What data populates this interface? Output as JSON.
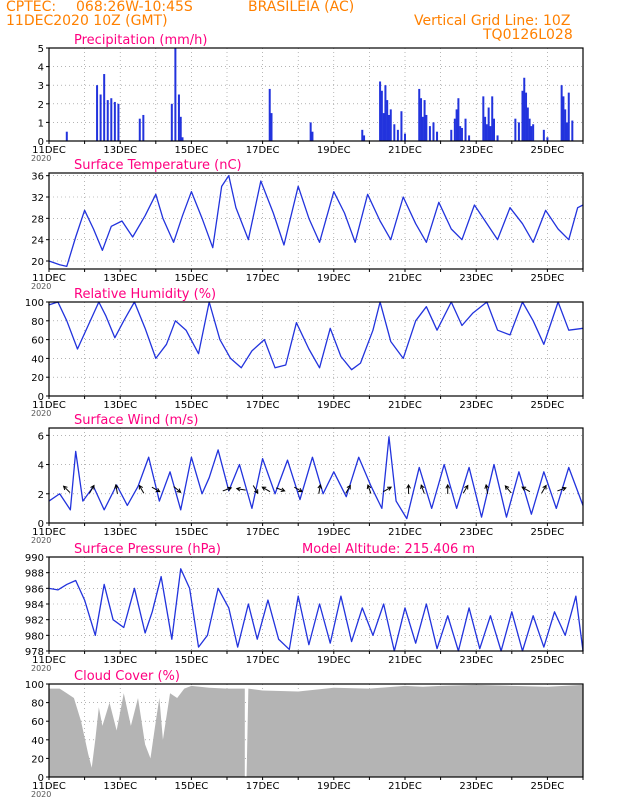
{
  "header": {
    "line1_left": "CPTEC:",
    "coords": "068:26W-10:45S",
    "station": "BRASILEIA (AC)",
    "date": "11DEC2020 10Z (GMT)",
    "grid_note": "Vertical Grid Line: 10Z",
    "model_code": "TQ0126L028",
    "color": "#ff8000"
  },
  "colors": {
    "series": "#2233dd",
    "title": "#ff0080",
    "cloud": "#b4b4b4",
    "grid": "#888888",
    "axis": "#000000"
  },
  "x_tick_labels": [
    "11DEC",
    "13DEC",
    "15DEC",
    "17DEC",
    "19DEC",
    "21DEC",
    "23DEC",
    "25DEC"
  ],
  "x_year_label": "2020",
  "chart_data": [
    {
      "id": "precip",
      "type": "bar",
      "title": "Precipitation (mm/h)",
      "ylim": [
        0,
        5
      ],
      "yticks": [
        0,
        1,
        2,
        3,
        4,
        5
      ],
      "x_unit": "days since 11DEC 10Z",
      "x": [
        0.5,
        1.35,
        1.45,
        1.55,
        1.65,
        1.75,
        1.85,
        1.95,
        2.55,
        2.65,
        3.45,
        3.55,
        3.65,
        3.7,
        3.75,
        6.2,
        6.25,
        7.35,
        7.4,
        8.8,
        8.85,
        9.3,
        9.35,
        9.4,
        9.45,
        9.5,
        9.55,
        9.6,
        9.7,
        9.8,
        9.9,
        10.0,
        10.4,
        10.45,
        10.5,
        10.55,
        10.6,
        10.7,
        10.8,
        10.9,
        11.3,
        11.4,
        11.45,
        11.5,
        11.55,
        11.6,
        11.7,
        11.8,
        12.2,
        12.25,
        12.3,
        12.35,
        12.4,
        12.45,
        12.5,
        12.6,
        13.1,
        13.2,
        13.3,
        13.35,
        13.4,
        13.45,
        13.5,
        13.55,
        13.6,
        13.9,
        14.0,
        14.4,
        14.45,
        14.5,
        14.55,
        14.6,
        14.7
      ],
      "values": [
        0.5,
        3.0,
        2.5,
        3.6,
        2.2,
        2.3,
        2.1,
        2.0,
        1.2,
        1.4,
        2.0,
        5.0,
        2.5,
        1.3,
        0.2,
        2.8,
        1.5,
        1.0,
        0.5,
        0.6,
        0.3,
        3.2,
        2.7,
        1.5,
        3.0,
        2.2,
        1.4,
        1.7,
        0.9,
        0.6,
        1.6,
        0.4,
        2.8,
        2.3,
        1.3,
        2.2,
        1.4,
        0.8,
        1.0,
        0.5,
        0.6,
        1.2,
        1.7,
        2.3,
        0.8,
        0.7,
        1.2,
        0.3,
        2.4,
        1.3,
        0.9,
        1.8,
        0.8,
        2.4,
        1.2,
        0.3,
        1.2,
        1.0,
        2.7,
        3.4,
        2.6,
        1.8,
        1.2,
        0.8,
        0.9,
        0.6,
        0.2,
        3.0,
        2.4,
        1.7,
        1.0,
        2.6,
        1.1
      ]
    },
    {
      "id": "temp",
      "type": "line",
      "title": "Surface Temperature (nC)",
      "ylim": [
        18.5,
        36.5
      ],
      "yticks": [
        20,
        24,
        28,
        32,
        36
      ],
      "x_unit": "days since 11DEC 10Z",
      "x": [
        0,
        0.3,
        0.5,
        0.75,
        1.0,
        1.25,
        1.5,
        1.75,
        2.05,
        2.35,
        2.7,
        3.0,
        3.2,
        3.5,
        3.75,
        4.0,
        4.3,
        4.6,
        4.85,
        5.05,
        5.25,
        5.6,
        5.95,
        6.3,
        6.6,
        7.0,
        7.3,
        7.6,
        8.0,
        8.3,
        8.6,
        8.95,
        9.3,
        9.6,
        9.95,
        10.3,
        10.6,
        10.95,
        11.3,
        11.6,
        11.95,
        12.3,
        12.6,
        12.95,
        13.3,
        13.6,
        13.95,
        14.3,
        14.6,
        14.85,
        15.0
      ],
      "values": [
        20,
        19.3,
        19.0,
        24.5,
        29.5,
        26,
        22,
        26.5,
        27.5,
        24.5,
        28.5,
        32.5,
        28,
        23.5,
        28.5,
        33,
        28,
        22.5,
        34,
        36,
        30,
        24,
        35,
        29,
        23,
        34,
        28,
        23.5,
        33,
        29,
        23.5,
        32.5,
        27.5,
        24,
        32,
        27,
        23.5,
        31,
        26,
        24,
        30.5,
        27,
        24,
        30,
        27,
        23.5,
        29.5,
        26,
        24,
        30,
        30.5
      ]
    },
    {
      "id": "rh",
      "type": "line",
      "title": "Relative Humidity (%)",
      "ylim": [
        0,
        100
      ],
      "yticks": [
        0,
        20,
        40,
        60,
        80,
        100
      ],
      "x_unit": "days since 11DEC 10Z",
      "x": [
        0,
        0.25,
        0.5,
        0.8,
        1.1,
        1.4,
        1.6,
        1.85,
        2.1,
        2.4,
        2.7,
        3.0,
        3.3,
        3.55,
        3.85,
        4.2,
        4.5,
        4.8,
        5.1,
        5.4,
        5.7,
        6.05,
        6.35,
        6.65,
        6.95,
        7.3,
        7.6,
        7.9,
        8.2,
        8.5,
        8.75,
        9.1,
        9.3,
        9.6,
        9.95,
        10.3,
        10.6,
        10.9,
        11.3,
        11.6,
        11.9,
        12.3,
        12.6,
        12.95,
        13.3,
        13.6,
        13.9,
        14.3,
        14.6,
        15.0
      ],
      "values": [
        97,
        100,
        80,
        50,
        75,
        100,
        85,
        62,
        80,
        100,
        72,
        40,
        55,
        80,
        70,
        45,
        100,
        60,
        40,
        30,
        48,
        60,
        30,
        33,
        78,
        50,
        30,
        72,
        42,
        28,
        35,
        70,
        100,
        58,
        40,
        80,
        95,
        70,
        100,
        75,
        88,
        100,
        70,
        65,
        100,
        80,
        55,
        100,
        70,
        72
      ]
    },
    {
      "id": "wind",
      "type": "line",
      "title": "Surface Wind (m/s)",
      "ylim": [
        0,
        6.5
      ],
      "yticks": [
        0,
        2,
        4,
        6
      ],
      "x_unit": "days since 11DEC 10Z",
      "x": [
        0,
        0.3,
        0.6,
        0.75,
        0.95,
        1.25,
        1.55,
        1.9,
        2.2,
        2.5,
        2.8,
        3.1,
        3.4,
        3.7,
        4.0,
        4.3,
        4.5,
        4.75,
        5.05,
        5.35,
        5.7,
        6.0,
        6.35,
        6.7,
        7.05,
        7.4,
        7.7,
        8.0,
        8.35,
        8.7,
        9.05,
        9.35,
        9.55,
        9.75,
        10.05,
        10.4,
        10.75,
        11.1,
        11.45,
        11.8,
        12.15,
        12.5,
        12.85,
        13.2,
        13.55,
        13.9,
        14.25,
        14.6,
        15.0
      ],
      "values": [
        1.5,
        2.0,
        0.9,
        4.9,
        1.5,
        2.5,
        0.9,
        2.6,
        1.2,
        2.5,
        4.5,
        1.5,
        3.5,
        0.9,
        4.5,
        2.0,
        3.1,
        5.0,
        2.2,
        4.0,
        1.0,
        4.4,
        2.0,
        4.3,
        1.6,
        4.5,
        2.0,
        3.5,
        1.8,
        4.5,
        2.5,
        1.0,
        5.9,
        1.5,
        0.3,
        3.8,
        1.0,
        4.0,
        1.0,
        3.8,
        0.4,
        4.0,
        0.4,
        3.5,
        0.6,
        3.5,
        1.0,
        3.8,
        1.2
      ],
      "arrows": [
        {
          "x": 0.5,
          "angle": 135
        },
        {
          "x": 1.2,
          "angle": 60
        },
        {
          "x": 1.9,
          "angle": 100
        },
        {
          "x": 2.6,
          "angle": 120
        },
        {
          "x": 3.0,
          "angle": -30
        },
        {
          "x": 3.6,
          "angle": -40
        },
        {
          "x": 5.0,
          "angle": 20
        },
        {
          "x": 5.4,
          "angle": 170
        },
        {
          "x": 5.8,
          "angle": -60
        },
        {
          "x": 6.1,
          "angle": 150
        },
        {
          "x": 6.5,
          "angle": -20
        },
        {
          "x": 7.0,
          "angle": -30
        },
        {
          "x": 7.6,
          "angle": 80
        },
        {
          "x": 8.4,
          "angle": 60
        },
        {
          "x": 9.0,
          "angle": 110
        },
        {
          "x": 9.5,
          "angle": 30
        },
        {
          "x": 10.1,
          "angle": 90
        },
        {
          "x": 10.5,
          "angle": 110
        },
        {
          "x": 11.2,
          "angle": 90
        },
        {
          "x": 11.7,
          "angle": 60
        },
        {
          "x": 12.3,
          "angle": 100
        },
        {
          "x": 12.9,
          "angle": 130
        },
        {
          "x": 13.4,
          "angle": 150
        },
        {
          "x": 13.9,
          "angle": 60
        },
        {
          "x": 14.4,
          "angle": 20
        }
      ]
    },
    {
      "id": "press",
      "type": "line",
      "title": "Surface Pressure (hPa)",
      "annotation": "Model Altitude: 215.406 m",
      "ylim": [
        978,
        990
      ],
      "yticks": [
        978,
        980,
        982,
        984,
        986,
        988,
        990
      ],
      "x_unit": "days since 11DEC 10Z",
      "x": [
        0,
        0.25,
        0.5,
        0.75,
        1.0,
        1.3,
        1.55,
        1.8,
        2.1,
        2.4,
        2.7,
        2.9,
        3.15,
        3.45,
        3.7,
        3.95,
        4.2,
        4.45,
        4.75,
        5.05,
        5.3,
        5.6,
        5.85,
        6.15,
        6.45,
        6.75,
        7.0,
        7.3,
        7.6,
        7.9,
        8.2,
        8.5,
        8.8,
        9.1,
        9.4,
        9.7,
        10.0,
        10.3,
        10.6,
        10.9,
        11.2,
        11.5,
        11.8,
        12.1,
        12.4,
        12.7,
        13.0,
        13.3,
        13.6,
        13.9,
        14.2,
        14.5,
        14.8,
        15.0
      ],
      "values": [
        986,
        985.8,
        986.5,
        987,
        984.5,
        980,
        986.5,
        982,
        981,
        986,
        980.3,
        983,
        987.5,
        979.5,
        988.5,
        986,
        978.5,
        980,
        986,
        983.5,
        978.5,
        984,
        979.5,
        984.5,
        979.5,
        978.2,
        985,
        978.8,
        984,
        979,
        985,
        979.2,
        983.5,
        980,
        984,
        978,
        983.5,
        979,
        984,
        978.3,
        982.5,
        978,
        983.5,
        978.3,
        982.5,
        978,
        983,
        978,
        982.5,
        978.5,
        983,
        980,
        985,
        978
      ]
    },
    {
      "id": "cloud",
      "type": "area",
      "title": "Cloud Cover (%)",
      "ylim": [
        0,
        100
      ],
      "yticks": [
        0,
        20,
        40,
        60,
        80,
        100
      ],
      "x_unit": "days since 11DEC 10Z",
      "x": [
        0,
        0.3,
        0.5,
        0.7,
        0.9,
        1.1,
        1.2,
        1.3,
        1.4,
        1.5,
        1.7,
        1.9,
        2.1,
        2.3,
        2.5,
        2.7,
        2.85,
        3.0,
        3.1,
        3.2,
        3.4,
        3.6,
        3.8,
        4.0,
        4.5,
        5.0,
        5.5,
        5.5,
        5.55,
        5.6,
        6.0,
        7.0,
        8.0,
        9.0,
        10.0,
        10.5,
        11.0,
        12.0,
        13.0,
        14.0,
        15.0
      ],
      "values": [
        95,
        95,
        90,
        85,
        60,
        25,
        10,
        40,
        75,
        55,
        80,
        50,
        90,
        55,
        85,
        35,
        20,
        60,
        85,
        40,
        90,
        85,
        95,
        98,
        96,
        95,
        95,
        0,
        0,
        95,
        93,
        92,
        96,
        95,
        98,
        97,
        98,
        99,
        98,
        97,
        99
      ]
    }
  ]
}
